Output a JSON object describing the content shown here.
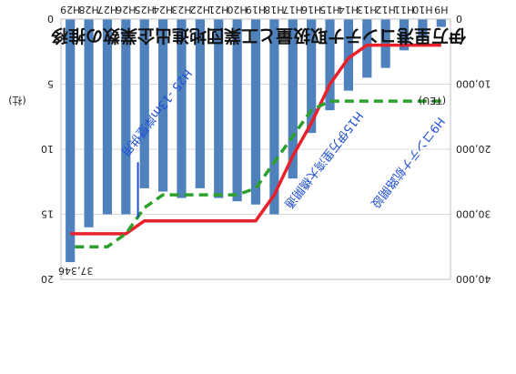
{
  "chart_data": {
    "type": "bar",
    "title": "伊万里港コンテナ取扱量と工業団地進出企業数の推移",
    "categories": [
      "H9",
      "H10",
      "H11",
      "H12",
      "H13",
      "H14",
      "H15",
      "H16",
      "H17",
      "H18",
      "H19",
      "H20",
      "H21",
      "H22",
      "H23",
      "H24",
      "H25",
      "H26",
      "H27",
      "H28",
      "H29"
    ],
    "left_axis": {
      "unit": "(TEU)",
      "min": 0,
      "max": 40000,
      "ticks": [
        "0",
        "10,000",
        "20,000",
        "30,000",
        "40,000"
      ]
    },
    "right_axis": {
      "unit": "(社)",
      "min": 0,
      "max": 20,
      "ticks": [
        "0",
        "5",
        "10",
        "15",
        "20"
      ]
    },
    "series": [
      {
        "kind": "bar",
        "axis": "left",
        "color": "#4f81bd",
        "values": [
          1200,
          3000,
          4800,
          7500,
          9000,
          11000,
          14000,
          17500,
          24500,
          30000,
          28500,
          28000,
          27500,
          26000,
          27500,
          26500,
          26000,
          30000,
          30000,
          32000,
          37346
        ]
      },
      {
        "kind": "line",
        "axis": "right",
        "color": "#e8202a",
        "values": [
          2,
          2,
          2,
          2,
          2,
          3,
          5,
          8,
          10.5,
          13.5,
          15.5,
          15.5,
          15.5,
          15.5,
          15.5,
          15.5,
          15.5,
          16.5,
          16.5,
          16.5,
          16.5
        ]
      },
      {
        "kind": "line",
        "axis": "right",
        "color": "#2ca02c",
        "dashed": true,
        "values": [
          6.3,
          6.3,
          6.3,
          6.3,
          6.3,
          6.3,
          6.3,
          7,
          9,
          11,
          13,
          13.5,
          13.5,
          13.5,
          13.5,
          13.5,
          14.5,
          16.5,
          17.5,
          17.5,
          17.5
        ]
      }
    ],
    "data_label": "37,346",
    "annotations": [
      {
        "text": "H9コンテナ航路開設",
        "color": "#1f4fd1"
      },
      {
        "text": "H15伊万里湾大橋開通",
        "color": "#1f4fd1"
      },
      {
        "text": "H25 -13m岸壁供用",
        "color": "#1f4fd1"
      }
    ]
  }
}
